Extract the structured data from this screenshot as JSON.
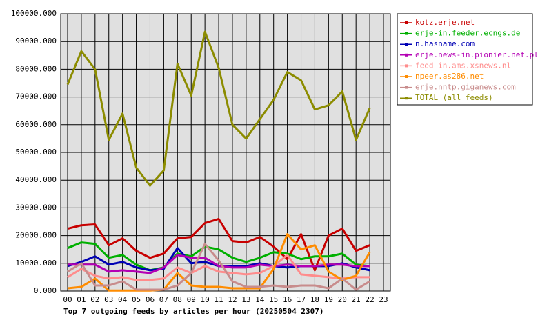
{
  "chart_data": {
    "type": "line",
    "title": "Top 7 outgoing feeds by articles per hour (20250504 2307)",
    "categories": [
      "00",
      "01",
      "02",
      "03",
      "04",
      "05",
      "06",
      "07",
      "08",
      "09",
      "10",
      "11",
      "12",
      "13",
      "14",
      "15",
      "16",
      "17",
      "18",
      "19",
      "20",
      "21",
      "22",
      "23"
    ],
    "ylim": [
      0,
      100000
    ],
    "yticks": [
      {
        "value": 0,
        "label": "0.000"
      },
      {
        "value": 10000,
        "label": "10000.000"
      },
      {
        "value": 20000,
        "label": "20000.000"
      },
      {
        "value": 30000,
        "label": "30000.000"
      },
      {
        "value": 40000,
        "label": "40000.000"
      },
      {
        "value": 50000,
        "label": "50000.000"
      },
      {
        "value": 60000,
        "label": "60000.000"
      },
      {
        "value": 70000,
        "label": "70000.000"
      },
      {
        "value": 80000,
        "label": "80000.000"
      },
      {
        "value": 90000,
        "label": "90000.000"
      },
      {
        "value": 100000,
        "label": "100000.000"
      }
    ],
    "grid": true,
    "legend": "right",
    "series": [
      {
        "name": "kotz.erje.net",
        "color": "#c80000",
        "values": [
          22500,
          23700,
          24000,
          16500,
          19000,
          14500,
          12000,
          13500,
          19000,
          19500,
          24500,
          26000,
          18000,
          17500,
          19500,
          16000,
          11500,
          20500,
          7500,
          20000,
          22500,
          14500,
          16500,
          null
        ]
      },
      {
        "name": "erje-in.feeder.ecngs.de",
        "color": "#00b000",
        "values": [
          15500,
          17500,
          17000,
          12000,
          13000,
          9500,
          7500,
          8500,
          13500,
          12500,
          16000,
          15000,
          12000,
          10500,
          12000,
          14000,
          13500,
          11500,
          12500,
          12500,
          13500,
          9500,
          9000,
          null
        ]
      },
      {
        "name": "n.hasname.com",
        "color": "#0000b4",
        "values": [
          9000,
          10500,
          12500,
          9500,
          10500,
          8500,
          7500,
          8000,
          15500,
          10000,
          10500,
          9000,
          9000,
          9000,
          10000,
          9000,
          8500,
          9000,
          9000,
          9000,
          10000,
          8500,
          7500,
          null
        ]
      },
      {
        "name": "erje.news-in.pionier.net.pl",
        "color": "#b400b4",
        "values": [
          9500,
          9500,
          9500,
          7000,
          7500,
          7000,
          6500,
          8500,
          13000,
          12000,
          12000,
          9000,
          8500,
          8500,
          9500,
          9000,
          9500,
          9000,
          9000,
          9500,
          9500,
          9000,
          9000,
          null
        ]
      },
      {
        "name": "feed-in.ams.xsnews.nl",
        "color": "#ff8c8c",
        "values": [
          5000,
          8000,
          5500,
          4500,
          5000,
          4000,
          4000,
          4500,
          8500,
          6500,
          9000,
          7000,
          6500,
          6000,
          6500,
          9000,
          13000,
          6000,
          5500,
          5000,
          4500,
          5000,
          5000,
          null
        ]
      },
      {
        "name": "npeer.as286.net",
        "color": "#ff8c00",
        "values": [
          1000,
          1500,
          4500,
          200,
          200,
          200,
          200,
          500,
          6500,
          2000,
          1500,
          1500,
          1000,
          1000,
          1000,
          8000,
          20500,
          15000,
          16500,
          7000,
          4000,
          5500,
          14000,
          null
        ]
      },
      {
        "name": "erje.nntp.giganews.com",
        "color": "#c88c8c",
        "values": [
          7000,
          10000,
          2000,
          2000,
          3500,
          500,
          500,
          500,
          2000,
          6500,
          17000,
          11000,
          3500,
          1500,
          1500,
          2000,
          1500,
          2000,
          2000,
          1000,
          4500,
          500,
          3500,
          null
        ]
      },
      {
        "name": "TOTAL (all feeds)",
        "color": "#8c8c00",
        "values": [
          74500,
          86500,
          80000,
          54500,
          64000,
          44500,
          38000,
          43500,
          82000,
          70500,
          93500,
          80500,
          60000,
          55000,
          62000,
          69000,
          79000,
          76000,
          65500,
          67000,
          72000,
          54500,
          66000,
          null
        ]
      }
    ]
  }
}
